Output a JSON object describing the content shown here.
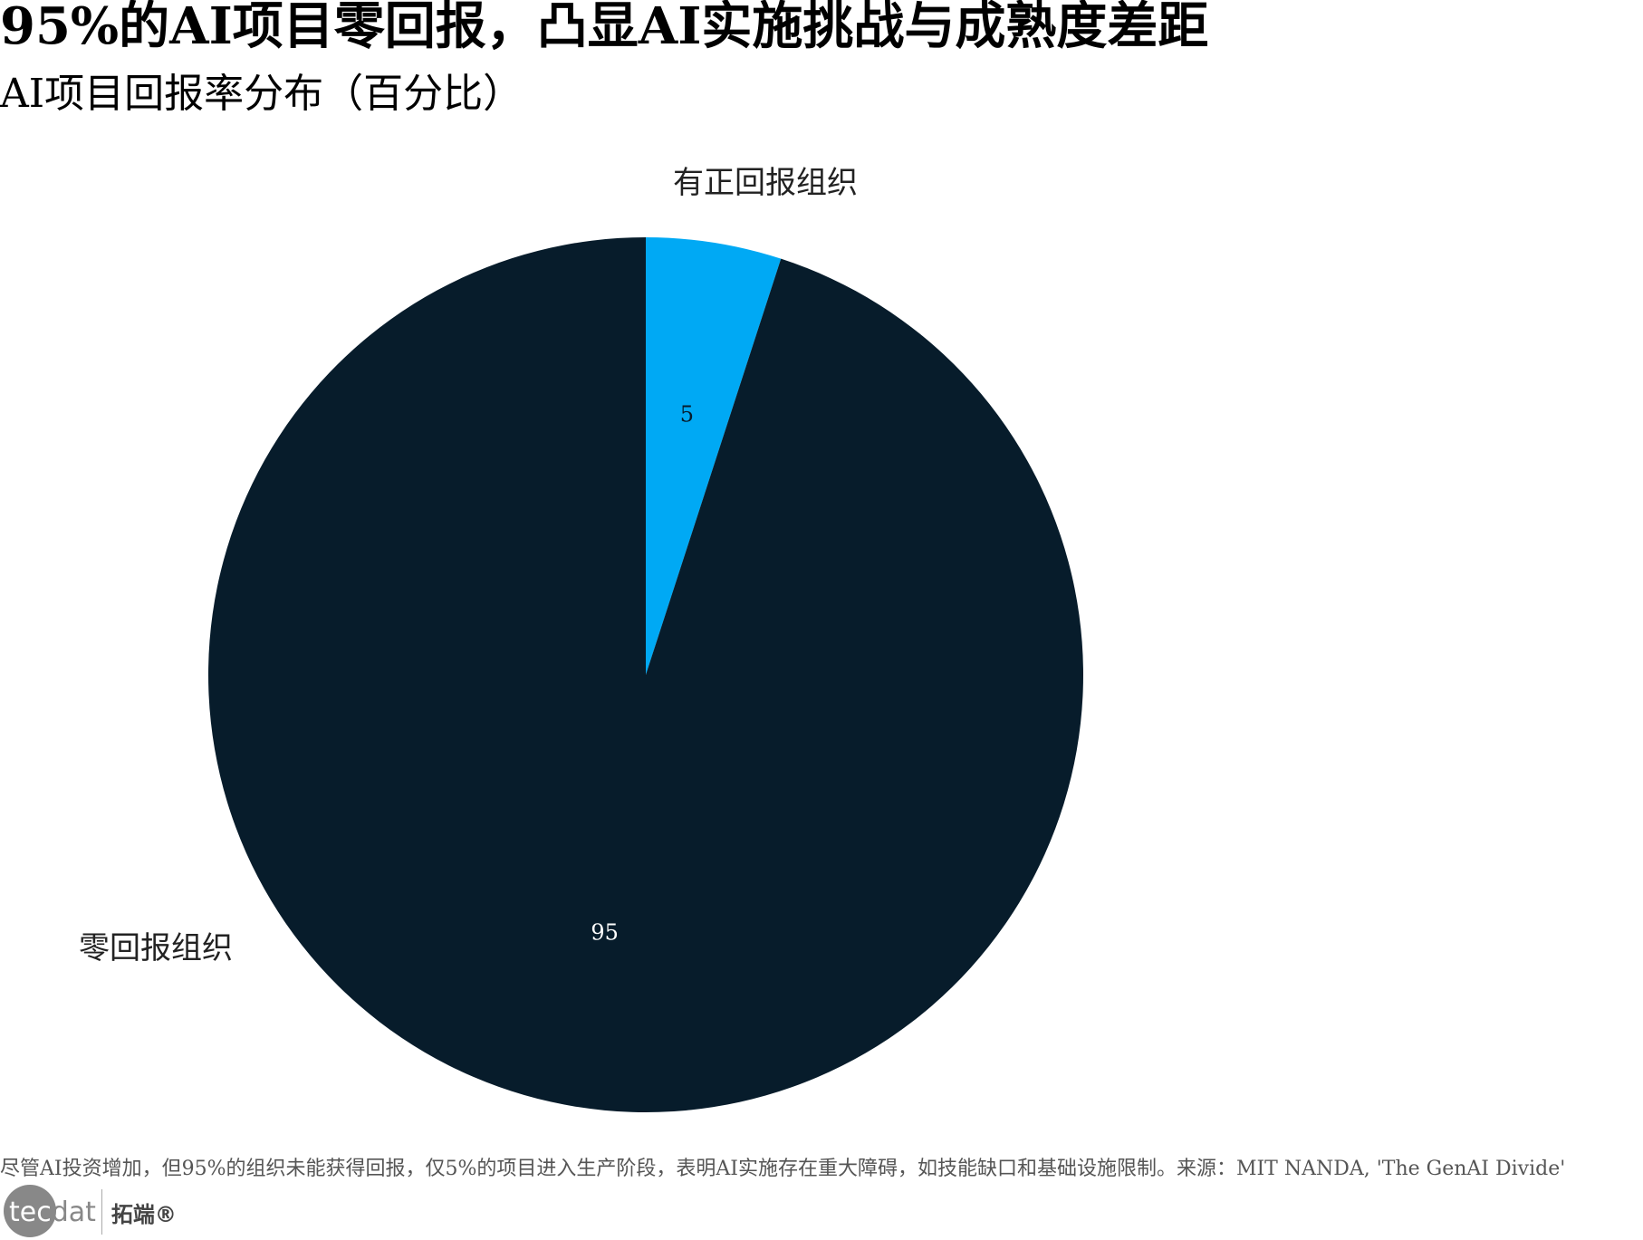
{
  "chart_data": {
    "type": "pie",
    "title": "95%的AI项目零回报，凸显AI实施挑战与成熟度差距",
    "subtitle": "AI项目回报率分布（百分比）",
    "categories": [
      "有正回报组织",
      "零回报组织"
    ],
    "values": [
      5,
      95
    ],
    "colors": [
      "#00a9f4",
      "#071c2b"
    ],
    "data_label_colors": [
      "#071c2b",
      "#ffffff"
    ],
    "legend": "none",
    "start_angle": "top, clockwise"
  },
  "footer": {
    "note": "尽管AI投资增加，但95%的组织未能获得回报，仅5%的项目进入生产阶段，表明AI实施存在重大障碍，如技能缺口和基础设施限制。来源：MIT NANDA, 'The GenAI Divide'"
  },
  "logo": {
    "text_en": "tecdat",
    "text_cn": "拓端®"
  }
}
